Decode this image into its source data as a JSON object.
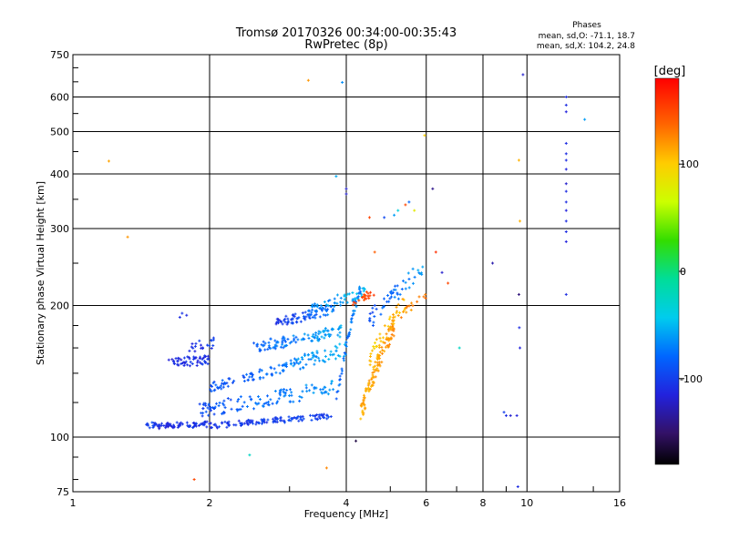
{
  "chart_data": {
    "type": "scatter",
    "title": "Tromsø 20170326 00:34:00-00:35:43",
    "subtitle": "RwPretec (8p)",
    "xlabel": "Frequency [MHz]",
    "ylabel": "Stationary phase Virtual Height [km]",
    "x_scale": "log",
    "y_scale": "log",
    "xlim": [
      1,
      16
    ],
    "ylim": [
      75,
      750
    ],
    "x_ticks": [
      1,
      2,
      4,
      6,
      8,
      10,
      16
    ],
    "y_ticks": [
      75,
      100,
      200,
      300,
      400,
      500,
      600,
      750
    ],
    "grid": true,
    "legend": {
      "title": "Phases",
      "line1": "mean, sd,O: -71.1, 18.7",
      "line2": "mean, sd,X: 104.2, 24.8"
    },
    "colorbar": {
      "label": "[deg]",
      "range": [
        -180,
        180
      ],
      "ticks": [
        100,
        0,
        -100
      ]
    },
    "series": [
      {
        "values": [
          [
            1.72,
            188,
            -110
          ],
          [
            1.74,
            192,
            -105
          ],
          [
            1.78,
            190,
            -112
          ],
          [
            1.2,
            428,
            115
          ],
          [
            1.32,
            287,
            120
          ],
          [
            1.85,
            80,
            150
          ],
          [
            2.45,
            91,
            -25
          ],
          [
            3.3,
            655,
            120
          ],
          [
            3.62,
            85,
            125
          ],
          [
            3.8,
            395,
            -55
          ],
          [
            3.92,
            648,
            -65
          ],
          [
            4.0,
            370,
            -120
          ],
          [
            4.0,
            360,
            -120
          ],
          [
            4.2,
            98,
            -160
          ],
          [
            4.5,
            318,
            150
          ],
          [
            4.62,
            265,
            140
          ],
          [
            4.85,
            318,
            -95
          ],
          [
            5.1,
            322,
            -60
          ],
          [
            5.2,
            330,
            -35
          ],
          [
            5.4,
            340,
            150
          ],
          [
            5.5,
            345,
            -80
          ],
          [
            5.65,
            330,
            80
          ],
          [
            5.95,
            490,
            100
          ],
          [
            6.2,
            370,
            -140
          ],
          [
            6.3,
            265,
            160
          ],
          [
            6.5,
            238,
            -120
          ],
          [
            6.7,
            225,
            150
          ],
          [
            7.1,
            160,
            -25
          ],
          [
            8.4,
            250,
            -130
          ],
          [
            8.9,
            114,
            -100
          ],
          [
            9.0,
            112,
            -110
          ],
          [
            9.2,
            112,
            -120
          ],
          [
            9.5,
            112,
            -115
          ],
          [
            9.6,
            212,
            -145
          ],
          [
            9.62,
            178,
            -110
          ],
          [
            9.65,
            160,
            -115
          ],
          [
            9.6,
            430,
            110
          ],
          [
            9.65,
            312,
            110
          ],
          [
            9.55,
            77,
            -110
          ],
          [
            9.8,
            675,
            -120
          ],
          [
            12.2,
            600,
            -110
          ],
          [
            12.2,
            575,
            -110
          ],
          [
            12.2,
            555,
            -115
          ],
          [
            12.2,
            470,
            -110
          ],
          [
            12.2,
            445,
            -110
          ],
          [
            12.2,
            430,
            -110
          ],
          [
            12.2,
            410,
            -115
          ],
          [
            12.2,
            380,
            -120
          ],
          [
            12.2,
            365,
            -110
          ],
          [
            12.2,
            345,
            -110
          ],
          [
            12.2,
            330,
            -115
          ],
          [
            12.2,
            312,
            -110
          ],
          [
            12.2,
            295,
            -110
          ],
          [
            12.2,
            280,
            -115
          ],
          [
            12.2,
            212,
            -110
          ],
          [
            13.4,
            533,
            -60
          ]
        ]
      }
    ]
  }
}
